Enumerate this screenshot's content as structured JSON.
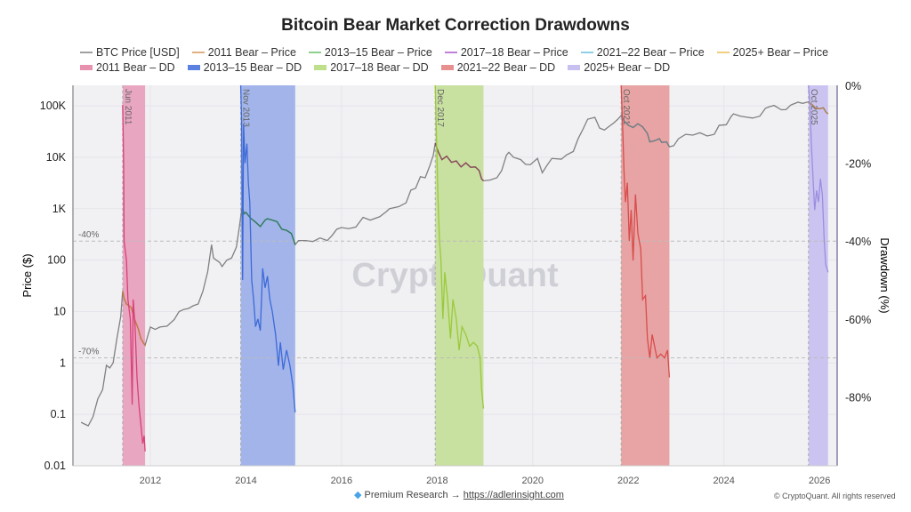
{
  "chart_data": {
    "type": "line",
    "title": "Bitcoin Bear Market Correction Drawdowns",
    "ylabel": "Price ($)",
    "y2label": "Drawdown (%)",
    "xlim": [
      2010.38,
      2026.37
    ],
    "ylim_log10": [
      -2,
      5.4
    ],
    "y2lim": [
      -97.7,
      0
    ],
    "y_scale": "log",
    "x_ticks": [
      "2012",
      "2014",
      "2016",
      "2018",
      "2020",
      "2022",
      "2024",
      "2026"
    ],
    "y_ticks": [
      {
        "v": 0.01,
        "l": "0.01"
      },
      {
        "v": 0.1,
        "l": "0.1"
      },
      {
        "v": 1,
        "l": "1"
      },
      {
        "v": 10,
        "l": "10"
      },
      {
        "v": 100,
        "l": "100"
      },
      {
        "v": 1000,
        "l": "1K"
      },
      {
        "v": 10000,
        "l": "10K"
      },
      {
        "v": 100000,
        "l": "100K"
      }
    ],
    "y2_ticks": [
      {
        "v": 0,
        "l": "0%"
      },
      {
        "v": -20,
        "l": "-20%"
      },
      {
        "v": -40,
        "l": "-40%"
      },
      {
        "v": -60,
        "l": "-60%"
      },
      {
        "v": -80,
        "l": "-80%"
      }
    ],
    "ref_lines": [
      {
        "v": -40,
        "l": "-40%"
      },
      {
        "v": -70,
        "l": "-70%"
      }
    ],
    "grid": true,
    "legend_position": "top",
    "watermark": "CryptoQuant",
    "btc": {
      "name": "BTC Price [USD]",
      "color": "#808080",
      "points": [
        [
          2010.55,
          0.07
        ],
        [
          2010.62,
          0.065
        ],
        [
          2010.7,
          0.06
        ],
        [
          2010.8,
          0.09
        ],
        [
          2010.9,
          0.2
        ],
        [
          2011.0,
          0.3
        ],
        [
          2011.08,
          0.9
        ],
        [
          2011.15,
          0.8
        ],
        [
          2011.22,
          1.0
        ],
        [
          2011.3,
          3
        ],
        [
          2011.38,
          8
        ],
        [
          2011.42,
          25
        ],
        [
          2011.45,
          18
        ],
        [
          2011.5,
          14
        ],
        [
          2011.55,
          13
        ],
        [
          2011.6,
          12
        ],
        [
          2011.65,
          8
        ],
        [
          2011.7,
          6
        ],
        [
          2011.75,
          4.5
        ],
        [
          2011.8,
          3
        ],
        [
          2011.85,
          2.5
        ],
        [
          2011.89,
          2.2
        ],
        [
          2011.95,
          3.5
        ],
        [
          2012.0,
          5
        ],
        [
          2012.1,
          4.5
        ],
        [
          2012.2,
          5
        ],
        [
          2012.35,
          5.2
        ],
        [
          2012.5,
          7
        ],
        [
          2012.6,
          10
        ],
        [
          2012.7,
          11
        ],
        [
          2012.8,
          11.5
        ],
        [
          2012.9,
          13
        ],
        [
          2013.0,
          14
        ],
        [
          2013.1,
          25
        ],
        [
          2013.2,
          60
        ],
        [
          2013.28,
          200
        ],
        [
          2013.32,
          110
        ],
        [
          2013.45,
          90
        ],
        [
          2013.5,
          75
        ],
        [
          2013.6,
          100
        ],
        [
          2013.7,
          110
        ],
        [
          2013.8,
          180
        ],
        [
          2013.87,
          500
        ],
        [
          2013.92,
          1100
        ],
        [
          2013.96,
          800
        ],
        [
          2014.0,
          850
        ],
        [
          2014.1,
          650
        ],
        [
          2014.2,
          550
        ],
        [
          2014.3,
          450
        ],
        [
          2014.4,
          600
        ],
        [
          2014.45,
          640
        ],
        [
          2014.55,
          600
        ],
        [
          2014.65,
          560
        ],
        [
          2014.75,
          400
        ],
        [
          2014.85,
          380
        ],
        [
          2014.95,
          330
        ],
        [
          2015.03,
          200
        ],
        [
          2015.1,
          240
        ],
        [
          2015.25,
          240
        ],
        [
          2015.4,
          230
        ],
        [
          2015.55,
          270
        ],
        [
          2015.7,
          240
        ],
        [
          2015.8,
          300
        ],
        [
          2015.9,
          400
        ],
        [
          2016.0,
          430
        ],
        [
          2016.15,
          410
        ],
        [
          2016.3,
          440
        ],
        [
          2016.45,
          680
        ],
        [
          2016.6,
          600
        ],
        [
          2016.8,
          700
        ],
        [
          2016.95,
          900
        ],
        [
          2017.0,
          1000
        ],
        [
          2017.2,
          1100
        ],
        [
          2017.35,
          1300
        ],
        [
          2017.45,
          2300
        ],
        [
          2017.55,
          2500
        ],
        [
          2017.65,
          4200
        ],
        [
          2017.75,
          4000
        ],
        [
          2017.85,
          7000
        ],
        [
          2017.92,
          11000
        ],
        [
          2017.96,
          19000
        ],
        [
          2018.02,
          13000
        ],
        [
          2018.1,
          9000
        ],
        [
          2018.2,
          10500
        ],
        [
          2018.3,
          8000
        ],
        [
          2018.4,
          8500
        ],
        [
          2018.5,
          6500
        ],
        [
          2018.6,
          7800
        ],
        [
          2018.7,
          6400
        ],
        [
          2018.8,
          6500
        ],
        [
          2018.88,
          5500
        ],
        [
          2018.93,
          3800
        ],
        [
          2018.97,
          3500
        ],
        [
          2019.1,
          3600
        ],
        [
          2019.25,
          4000
        ],
        [
          2019.35,
          5500
        ],
        [
          2019.45,
          11000
        ],
        [
          2019.5,
          12500
        ],
        [
          2019.6,
          10000
        ],
        [
          2019.75,
          9000
        ],
        [
          2019.85,
          7300
        ],
        [
          2019.95,
          7200
        ],
        [
          2020.1,
          9500
        ],
        [
          2020.2,
          5000
        ],
        [
          2020.3,
          7000
        ],
        [
          2020.4,
          9500
        ],
        [
          2020.6,
          9200
        ],
        [
          2020.7,
          11000
        ],
        [
          2020.85,
          13000
        ],
        [
          2020.95,
          23000
        ],
        [
          2021.05,
          35000
        ],
        [
          2021.15,
          55000
        ],
        [
          2021.3,
          60000
        ],
        [
          2021.4,
          37000
        ],
        [
          2021.5,
          34000
        ],
        [
          2021.6,
          40000
        ],
        [
          2021.7,
          47000
        ],
        [
          2021.78,
          55000
        ],
        [
          2021.85,
          65000
        ],
        [
          2021.92,
          50000
        ],
        [
          2022.0,
          42000
        ],
        [
          2022.1,
          38000
        ],
        [
          2022.2,
          45000
        ],
        [
          2022.3,
          39000
        ],
        [
          2022.4,
          29000
        ],
        [
          2022.45,
          20000
        ],
        [
          2022.55,
          21000
        ],
        [
          2022.65,
          23000
        ],
        [
          2022.7,
          19500
        ],
        [
          2022.8,
          20000
        ],
        [
          2022.86,
          16000
        ],
        [
          2022.95,
          16800
        ],
        [
          2023.05,
          23000
        ],
        [
          2023.2,
          28000
        ],
        [
          2023.35,
          27000
        ],
        [
          2023.5,
          30000
        ],
        [
          2023.65,
          26000
        ],
        [
          2023.8,
          28000
        ],
        [
          2023.9,
          42000
        ],
        [
          2024.05,
          43000
        ],
        [
          2024.15,
          62000
        ],
        [
          2024.2,
          70000
        ],
        [
          2024.35,
          63000
        ],
        [
          2024.5,
          60000
        ],
        [
          2024.6,
          58000
        ],
        [
          2024.75,
          63000
        ],
        [
          2024.87,
          90000
        ],
        [
          2024.95,
          96000
        ],
        [
          2025.05,
          102000
        ],
        [
          2025.2,
          84000
        ],
        [
          2025.3,
          85000
        ],
        [
          2025.4,
          104000
        ],
        [
          2025.55,
          118000
        ],
        [
          2025.65,
          112000
        ],
        [
          2025.77,
          120000
        ],
        [
          2025.85,
          105000
        ],
        [
          2025.92,
          90000
        ],
        [
          2026.0,
          88000
        ],
        [
          2026.08,
          92000
        ],
        [
          2026.14,
          75000
        ],
        [
          2026.18,
          70000
        ]
      ]
    },
    "bears": [
      {
        "price_name": "2011 Bear – Price",
        "dd_name": "2011 Bear – DD",
        "label": "Jun 2011",
        "start": 2011.42,
        "end": 2011.89,
        "price_color": "#c8783c",
        "dd_color": "#d9407a",
        "shade_color": "#e8a6c0",
        "dd": [
          [
            2011.42,
            -5
          ],
          [
            2011.44,
            -20
          ],
          [
            2011.45,
            -40
          ],
          [
            2011.5,
            -45
          ],
          [
            2011.53,
            -55
          ],
          [
            2011.58,
            -60
          ],
          [
            2011.62,
            -82
          ],
          [
            2011.64,
            -55
          ],
          [
            2011.68,
            -62
          ],
          [
            2011.72,
            -75
          ],
          [
            2011.76,
            -82
          ],
          [
            2011.8,
            -87
          ],
          [
            2011.84,
            -92
          ],
          [
            2011.87,
            -90
          ],
          [
            2011.89,
            -94
          ]
        ]
      },
      {
        "price_name": "2013–15 Bear – Price",
        "dd_name": "2013–15 Bear – DD",
        "label": "Nov 2013",
        "start": 2013.89,
        "end": 2015.03,
        "price_color": "#2e7d5b",
        "dd_color": "#3d6ad8",
        "shade_color": "#a2b4ea",
        "dd": [
          [
            2013.89,
            0
          ],
          [
            2013.91,
            -10
          ],
          [
            2013.93,
            -50
          ],
          [
            2013.95,
            -10
          ],
          [
            2013.98,
            -20
          ],
          [
            2014.02,
            -15
          ],
          [
            2014.05,
            -25
          ],
          [
            2014.08,
            -30
          ],
          [
            2014.12,
            -50
          ],
          [
            2014.16,
            -55
          ],
          [
            2014.2,
            -62
          ],
          [
            2014.25,
            -60
          ],
          [
            2014.3,
            -63
          ],
          [
            2014.35,
            -47
          ],
          [
            2014.4,
            -52
          ],
          [
            2014.45,
            -49
          ],
          [
            2014.5,
            -55
          ],
          [
            2014.55,
            -58
          ],
          [
            2014.62,
            -64
          ],
          [
            2014.68,
            -72
          ],
          [
            2014.72,
            -66
          ],
          [
            2014.78,
            -73
          ],
          [
            2014.85,
            -68
          ],
          [
            2014.92,
            -72
          ],
          [
            2014.98,
            -77
          ],
          [
            2015.03,
            -84
          ]
        ]
      },
      {
        "price_name": "2017–18 Bear – Price",
        "dd_name": "2017–18 Bear – DD",
        "label": "Dec 2017",
        "start": 2017.96,
        "end": 2018.97,
        "price_color": "#8b4a5a",
        "dd_color": "#9bc93c",
        "shade_color": "#c8e0a0",
        "dd": [
          [
            2017.96,
            0
          ],
          [
            2017.99,
            -15
          ],
          [
            2018.02,
            -30
          ],
          [
            2018.05,
            -40
          ],
          [
            2018.08,
            -45
          ],
          [
            2018.12,
            -60
          ],
          [
            2018.16,
            -48
          ],
          [
            2018.22,
            -55
          ],
          [
            2018.28,
            -65
          ],
          [
            2018.33,
            -55
          ],
          [
            2018.4,
            -60
          ],
          [
            2018.46,
            -68
          ],
          [
            2018.52,
            -62
          ],
          [
            2018.6,
            -64
          ],
          [
            2018.68,
            -67
          ],
          [
            2018.76,
            -66
          ],
          [
            2018.84,
            -67
          ],
          [
            2018.9,
            -70
          ],
          [
            2018.93,
            -78
          ],
          [
            2018.97,
            -83
          ]
        ]
      },
      {
        "price_name": "2021–22 Bear – Price",
        "dd_name": "2021–22 Bear – DD",
        "label": "Oct 2021",
        "start": 2021.85,
        "end": 2022.86,
        "price_color": "#6f7f88",
        "dd_color": "#d84c4c",
        "shade_color": "#e8a4a4",
        "dd": [
          [
            2021.85,
            0
          ],
          [
            2021.88,
            -10
          ],
          [
            2021.91,
            -22
          ],
          [
            2021.94,
            -30
          ],
          [
            2021.98,
            -25
          ],
          [
            2022.02,
            -40
          ],
          [
            2022.06,
            -32
          ],
          [
            2022.1,
            -45
          ],
          [
            2022.15,
            -28
          ],
          [
            2022.2,
            -38
          ],
          [
            2022.26,
            -42
          ],
          [
            2022.3,
            -55
          ],
          [
            2022.36,
            -54
          ],
          [
            2022.4,
            -65
          ],
          [
            2022.45,
            -70
          ],
          [
            2022.5,
            -64
          ],
          [
            2022.55,
            -67
          ],
          [
            2022.6,
            -70
          ],
          [
            2022.68,
            -69
          ],
          [
            2022.76,
            -70
          ],
          [
            2022.82,
            -68
          ],
          [
            2022.86,
            -75
          ]
        ]
      },
      {
        "price_name": "2025+ Bear – Price",
        "dd_name": "2025+ Bear – DD",
        "label": "Oct 2025",
        "start": 2025.77,
        "end": 2026.18,
        "price_color": "#b08050",
        "dd_color": "#9b8ee0",
        "shade_color": "#cbc4f0",
        "dd": [
          [
            2025.77,
            0
          ],
          [
            2025.8,
            -5
          ],
          [
            2025.83,
            -15
          ],
          [
            2025.87,
            -25
          ],
          [
            2025.9,
            -32
          ],
          [
            2025.94,
            -27
          ],
          [
            2025.98,
            -30
          ],
          [
            2026.02,
            -24
          ],
          [
            2026.06,
            -28
          ],
          [
            2026.1,
            -40
          ],
          [
            2026.13,
            -46
          ],
          [
            2026.18,
            -48
          ]
        ]
      }
    ]
  },
  "legend": {
    "row1": [
      {
        "label": "BTC Price [USD]",
        "color": "#a0a0a0"
      },
      {
        "label": "2011 Bear – Price",
        "color": "#e0b080"
      },
      {
        "label": "2013–15 Bear – Price",
        "color": "#8fcf8f"
      },
      {
        "label": "2017–18 Bear – Price",
        "color": "#c080d8"
      },
      {
        "label": "2021–22 Bear – Price",
        "color": "#8fd0e8"
      },
      {
        "label": "2025+ Bear – Price",
        "color": "#f0d080"
      }
    ],
    "row2": [
      {
        "label": "2011 Bear – DD",
        "color": "#e890b0"
      },
      {
        "label": "2013–15 Bear – DD",
        "color": "#5b82e0"
      },
      {
        "label": "2017–18 Bear – DD",
        "color": "#bfe08a"
      },
      {
        "label": "2021–22 Bear – DD",
        "color": "#e89090"
      },
      {
        "label": "2025+ Bear – DD",
        "color": "#c8c0f0"
      }
    ]
  },
  "footer": {
    "icon": "gem-icon",
    "text": "Premium Research →",
    "link": "https://adlerinsight.com",
    "copyright": "© CryptoQuant. All rights reserved"
  }
}
